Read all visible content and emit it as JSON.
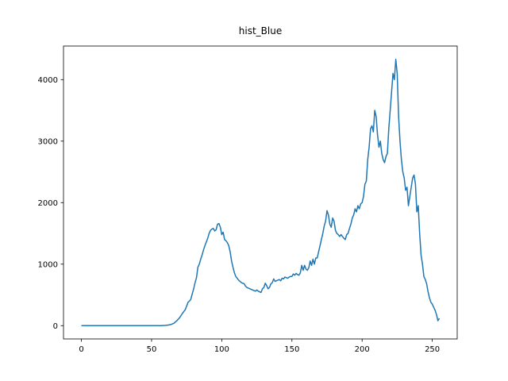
{
  "chart_data": {
    "type": "line",
    "title": "hist_Blue",
    "x": [
      0,
      1,
      2,
      3,
      4,
      5,
      6,
      7,
      8,
      9,
      10,
      11,
      12,
      13,
      14,
      15,
      16,
      17,
      18,
      19,
      20,
      21,
      22,
      23,
      24,
      25,
      26,
      27,
      28,
      29,
      30,
      31,
      32,
      33,
      34,
      35,
      36,
      37,
      38,
      39,
      40,
      41,
      42,
      43,
      44,
      45,
      46,
      47,
      48,
      49,
      50,
      51,
      52,
      53,
      54,
      55,
      56,
      57,
      58,
      59,
      60,
      61,
      62,
      63,
      64,
      65,
      66,
      67,
      68,
      69,
      70,
      71,
      72,
      73,
      74,
      75,
      76,
      77,
      78,
      79,
      80,
      81,
      82,
      83,
      84,
      85,
      86,
      87,
      88,
      89,
      90,
      91,
      92,
      93,
      94,
      95,
      96,
      97,
      98,
      99,
      100,
      101,
      102,
      103,
      104,
      105,
      106,
      107,
      108,
      109,
      110,
      111,
      112,
      113,
      114,
      115,
      116,
      117,
      118,
      119,
      120,
      121,
      122,
      123,
      124,
      125,
      126,
      127,
      128,
      129,
      130,
      131,
      132,
      133,
      134,
      135,
      136,
      137,
      138,
      139,
      140,
      141,
      142,
      143,
      144,
      145,
      146,
      147,
      148,
      149,
      150,
      151,
      152,
      153,
      154,
      155,
      156,
      157,
      158,
      159,
      160,
      161,
      162,
      163,
      164,
      165,
      166,
      167,
      168,
      169,
      170,
      171,
      172,
      173,
      174,
      175,
      176,
      177,
      178,
      179,
      180,
      181,
      182,
      183,
      184,
      185,
      186,
      187,
      188,
      189,
      190,
      191,
      192,
      193,
      194,
      195,
      196,
      197,
      198,
      199,
      200,
      201,
      202,
      203,
      204,
      205,
      206,
      207,
      208,
      209,
      210,
      211,
      212,
      213,
      214,
      215,
      216,
      217,
      218,
      219,
      220,
      221,
      222,
      223,
      224,
      225,
      226,
      227,
      228,
      229,
      230,
      231,
      232,
      233,
      234,
      235,
      236,
      237,
      238,
      239,
      240,
      241,
      242,
      243,
      244,
      245,
      246,
      247,
      248,
      249,
      250,
      251,
      252,
      253,
      254,
      255
    ],
    "values": [
      0,
      0,
      0,
      0,
      0,
      0,
      0,
      0,
      0,
      0,
      0,
      0,
      0,
      0,
      0,
      0,
      0,
      0,
      0,
      0,
      0,
      0,
      0,
      0,
      0,
      0,
      0,
      0,
      0,
      0,
      0,
      0,
      0,
      0,
      0,
      0,
      0,
      0,
      0,
      0,
      0,
      0,
      0,
      0,
      0,
      0,
      0,
      0,
      0,
      0,
      0,
      0,
      0,
      0,
      0,
      0,
      0,
      0,
      2,
      3,
      5,
      8,
      10,
      15,
      20,
      30,
      40,
      60,
      80,
      105,
      130,
      165,
      200,
      230,
      260,
      320,
      380,
      400,
      430,
      520,
      600,
      700,
      780,
      950,
      1000,
      1080,
      1150,
      1230,
      1300,
      1360,
      1420,
      1500,
      1550,
      1570,
      1580,
      1540,
      1560,
      1650,
      1660,
      1600,
      1480,
      1520,
      1400,
      1380,
      1350,
      1300,
      1200,
      1050,
      950,
      860,
      800,
      770,
      740,
      720,
      700,
      690,
      680,
      640,
      620,
      610,
      600,
      590,
      580,
      570,
      560,
      580,
      560,
      550,
      540,
      600,
      620,
      690,
      650,
      600,
      620,
      680,
      700,
      760,
      720,
      730,
      740,
      750,
      730,
      770,
      760,
      790,
      780,
      770,
      790,
      800,
      800,
      840,
      820,
      850,
      830,
      820,
      860,
      980,
      900,
      980,
      920,
      900,
      940,
      1050,
      980,
      1080,
      1000,
      1100,
      1100,
      1200,
      1300,
      1400,
      1500,
      1620,
      1700,
      1870,
      1800,
      1650,
      1600,
      1750,
      1700,
      1550,
      1500,
      1480,
      1450,
      1480,
      1450,
      1420,
      1400,
      1480,
      1500,
      1580,
      1650,
      1750,
      1800,
      1900,
      1850,
      1950,
      1900,
      1980,
      2000,
      2100,
      2300,
      2350,
      2700,
      2900,
      3200,
      3250,
      3150,
      3500,
      3400,
      3100,
      2900,
      3000,
      2800,
      2700,
      2650,
      2750,
      2800,
      3200,
      3500,
      3800,
      4100,
      4000,
      4330,
      4100,
      3400,
      3000,
      2700,
      2500,
      2400,
      2200,
      2250,
      1950,
      2100,
      2250,
      2400,
      2450,
      2300,
      1850,
      1950,
      1500,
      1150,
      1000,
      800,
      750,
      680,
      550,
      450,
      380,
      350,
      300,
      250,
      180,
      80,
      120
    ],
    "color": "#1f77b4",
    "xlim": [
      -12.75,
      267.75
    ],
    "xticks": [
      0,
      50,
      100,
      150,
      200,
      250
    ],
    "ylim": [
      -216,
      4546
    ],
    "yticks": [
      0,
      1000,
      2000,
      3000,
      4000
    ]
  }
}
